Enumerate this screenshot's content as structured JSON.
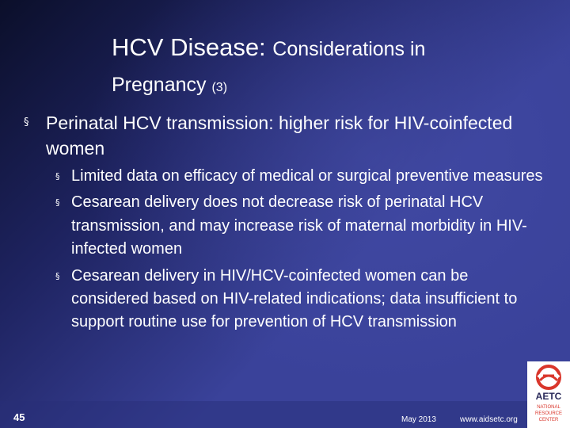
{
  "slide": {
    "title_main": "HCV Disease: ",
    "title_sub_1": "Considerations in",
    "title_sub_2": "Pregnancy ",
    "title_number": "(3)",
    "bullets": [
      {
        "text": "Perinatal HCV transmission: higher risk for HIV-coinfected women",
        "sub_bullets": [
          "Limited data on efficacy of medical or surgical preventive measures",
          "Cesarean delivery does not decrease risk of perinatal HCV transmission, and may increase risk of maternal morbidity in HIV-infected women",
          "Cesarean delivery in HIV/HCV-coinfected women can be considered based on HIV-related indications; data insufficient to support routine use for prevention of HCV transmission"
        ]
      }
    ],
    "bullet_glyph": "§"
  },
  "footer": {
    "page_number": "45",
    "date": "May 2013",
    "url": "www.aidsetc.org"
  },
  "logo": {
    "name": "aetc-logo",
    "line1": "AETC",
    "line2": "NATIONAL",
    "line3": "RESOURCE",
    "line4": "CENTER",
    "accent_color": "#d9362b"
  }
}
